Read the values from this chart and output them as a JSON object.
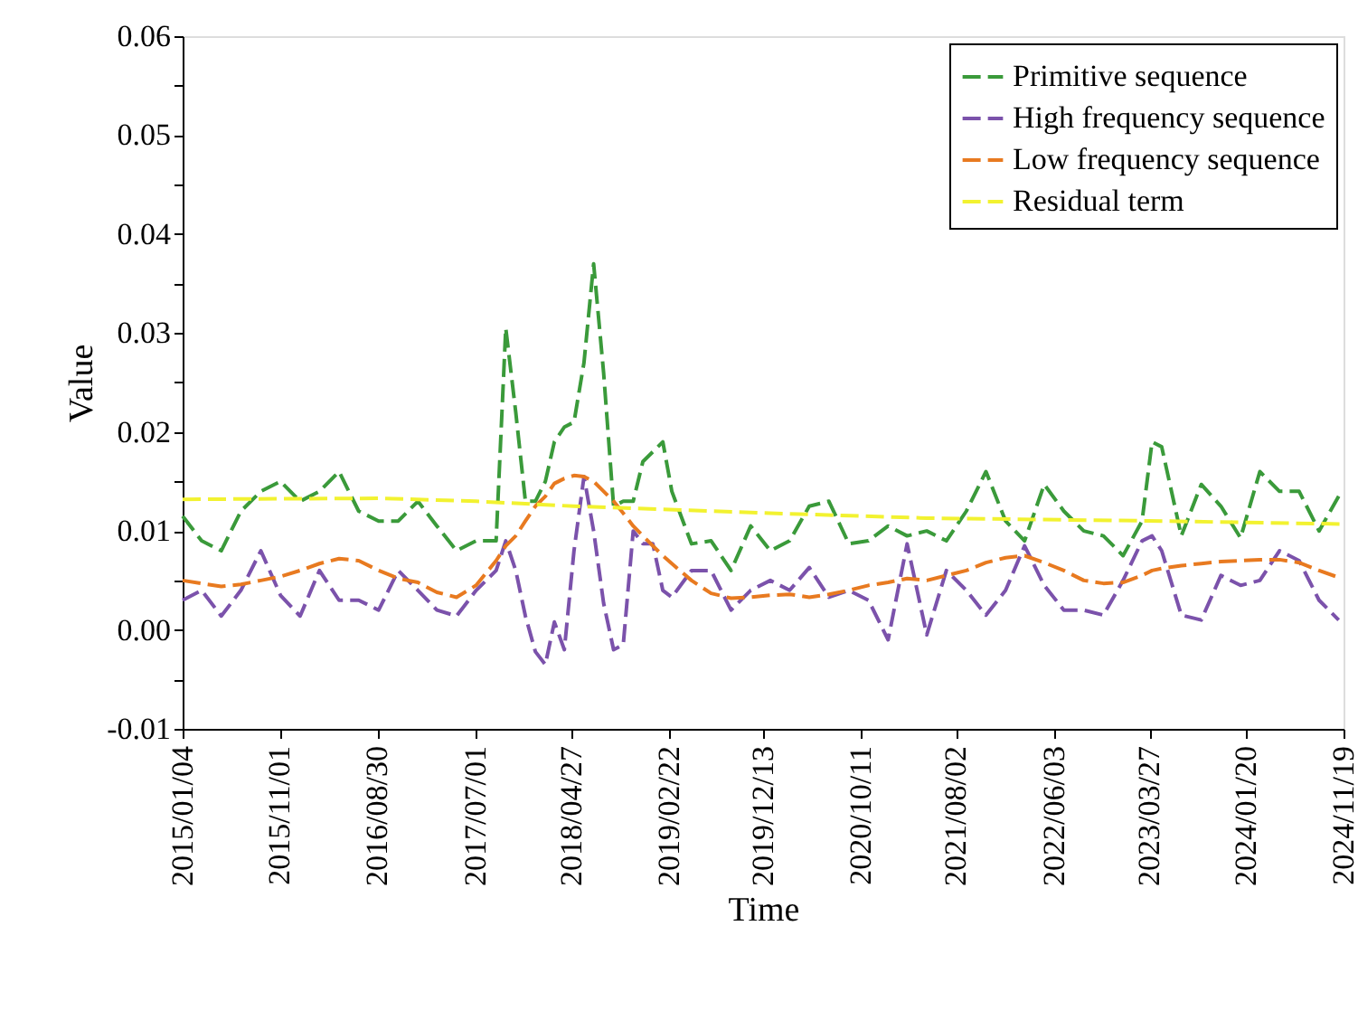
{
  "chart_data": {
    "type": "line",
    "xlabel": "Time",
    "ylabel": "Value",
    "x": [
      "2015-01-04",
      "2015-03-04",
      "2015-05-04",
      "2015-07-04",
      "2015-09-04",
      "2015-11-04",
      "2016-01-04",
      "2016-03-04",
      "2016-05-04",
      "2016-07-04",
      "2016-09-04",
      "2016-11-04",
      "2017-01-04",
      "2017-03-04",
      "2017-05-04",
      "2017-07-04",
      "2017-09-04",
      "2017-10-04",
      "2017-11-04",
      "2017-12-04",
      "2018-01-04",
      "2018-02-04",
      "2018-03-04",
      "2018-04-04",
      "2018-05-04",
      "2018-06-04",
      "2018-07-04",
      "2018-08-04",
      "2018-09-04",
      "2018-10-04",
      "2018-11-04",
      "2018-12-04",
      "2019-01-04",
      "2019-02-04",
      "2019-03-04",
      "2019-05-04",
      "2019-07-04",
      "2019-09-04",
      "2019-11-04",
      "2020-01-04",
      "2020-03-04",
      "2020-05-04",
      "2020-07-04",
      "2020-09-04",
      "2020-11-04",
      "2021-01-04",
      "2021-03-04",
      "2021-05-04",
      "2021-07-04",
      "2021-09-04",
      "2021-11-04",
      "2022-01-04",
      "2022-03-04",
      "2022-05-04",
      "2022-07-04",
      "2022-09-04",
      "2022-11-04",
      "2023-01-04",
      "2023-03-04",
      "2023-04-04",
      "2023-05-04",
      "2023-07-04",
      "2023-09-04",
      "2023-11-04",
      "2024-01-04",
      "2024-03-04",
      "2024-05-04",
      "2024-07-04",
      "2024-09-04",
      "2024-11-04"
    ],
    "series": [
      {
        "name": "Primitive sequence",
        "color": "#3a9a3a",
        "values": [
          0.0115,
          0.009,
          0.008,
          0.012,
          0.014,
          0.015,
          0.013,
          0.014,
          0.016,
          0.012,
          0.011,
          0.011,
          0.013,
          0.0105,
          0.008,
          0.009,
          0.009,
          0.0305,
          0.022,
          0.013,
          0.013,
          0.015,
          0.019,
          0.0205,
          0.021,
          0.027,
          0.037,
          0.026,
          0.0125,
          0.013,
          0.013,
          0.017,
          0.018,
          0.019,
          0.014,
          0.0087,
          0.009,
          0.006,
          0.0105,
          0.008,
          0.009,
          0.0125,
          0.013,
          0.0087,
          0.009,
          0.0105,
          0.0095,
          0.01,
          0.009,
          0.012,
          0.016,
          0.011,
          0.009,
          0.0147,
          0.012,
          0.01,
          0.0095,
          0.0075,
          0.011,
          0.019,
          0.0185,
          0.0095,
          0.0147,
          0.0125,
          0.0093,
          0.016,
          0.014,
          0.014,
          0.01,
          0.0135
        ]
      },
      {
        "name": "High frequency sequence",
        "color": "#7b52ab",
        "values": [
          0.003,
          0.004,
          0.0014,
          0.004,
          0.008,
          0.0035,
          0.0014,
          0.006,
          0.003,
          0.003,
          0.002,
          0.006,
          0.004,
          0.002,
          0.0014,
          0.004,
          0.006,
          0.009,
          0.006,
          0.0014,
          -0.0022,
          -0.0035,
          0.0008,
          -0.002,
          0.008,
          0.0155,
          0.01,
          0.0027,
          -0.002,
          -0.0015,
          0.01,
          0.0087,
          0.0087,
          0.004,
          0.0033,
          0.006,
          0.006,
          0.002,
          0.004,
          0.005,
          0.004,
          0.0063,
          0.0033,
          0.004,
          0.003,
          -0.001,
          0.0087,
          -0.0005,
          0.006,
          0.004,
          0.0015,
          0.004,
          0.0085,
          0.0045,
          0.002,
          0.002,
          0.0015,
          0.005,
          0.009,
          0.0095,
          0.008,
          0.0015,
          0.001,
          0.0055,
          0.0045,
          0.005,
          0.008,
          0.007,
          0.003,
          0.001
        ]
      },
      {
        "name": "Low frequency sequence",
        "color": "#e87a20",
        "values": [
          0.005,
          0.0047,
          0.0044,
          0.0046,
          0.005,
          0.0054,
          0.006,
          0.0067,
          0.0072,
          0.007,
          0.006,
          0.0052,
          0.0048,
          0.0038,
          0.0033,
          0.0045,
          0.007,
          0.0085,
          0.0095,
          0.011,
          0.0125,
          0.0135,
          0.0148,
          0.0153,
          0.0156,
          0.0155,
          0.015,
          0.014,
          0.013,
          0.0118,
          0.0105,
          0.0095,
          0.0085,
          0.0075,
          0.0067,
          0.005,
          0.0037,
          0.0032,
          0.0033,
          0.0035,
          0.0036,
          0.0033,
          0.0036,
          0.004,
          0.0045,
          0.0048,
          0.0052,
          0.005,
          0.0055,
          0.006,
          0.0068,
          0.0073,
          0.0075,
          0.0068,
          0.006,
          0.005,
          0.0047,
          0.0048,
          0.0055,
          0.006,
          0.0062,
          0.0065,
          0.0067,
          0.0069,
          0.007,
          0.0071,
          0.0071,
          0.0068,
          0.006,
          0.0053
        ]
      },
      {
        "name": "Residual term",
        "color": "#f2f230",
        "x": [
          "2015-01-04",
          "2016-09-04",
          "2017-07-04",
          "2018-05-04",
          "2020-01-04",
          "2021-05-04",
          "2023-05-04",
          "2024-11-19"
        ],
        "values": [
          0.0132,
          0.0133,
          0.013,
          0.0125,
          0.0118,
          0.0113,
          0.011,
          0.0107
        ]
      }
    ],
    "xlim": [
      "2015-01-04",
      "2024-11-19"
    ],
    "xticks": [
      {
        "value": "2015-01-04",
        "label": "2015/01/04"
      },
      {
        "value": "2015-11-01",
        "label": "2015/11/01"
      },
      {
        "value": "2016-08-30",
        "label": "2016/08/30"
      },
      {
        "value": "2017-07-01",
        "label": "2017/07/01"
      },
      {
        "value": "2018-04-27",
        "label": "2018/04/27"
      },
      {
        "value": "2019-02-22",
        "label": "2019/02/22"
      },
      {
        "value": "2019-12-13",
        "label": "2019/12/13"
      },
      {
        "value": "2020-10-11",
        "label": "2020/10/11"
      },
      {
        "value": "2021-08-02",
        "label": "2021/08/02"
      },
      {
        "value": "2022-06-03",
        "label": "2022/06/03"
      },
      {
        "value": "2023-03-27",
        "label": "2023/03/27"
      },
      {
        "value": "2024-01-20",
        "label": "2024/01/20"
      },
      {
        "value": "2024-11-19",
        "label": "2024/11/19"
      }
    ],
    "ylim": [
      -0.01,
      0.06
    ],
    "yticks": [
      {
        "value": -0.01,
        "label": "-0.01"
      },
      {
        "value": -0.005,
        "label": null
      },
      {
        "value": 0,
        "label": "0.00"
      },
      {
        "value": 0.005,
        "label": null
      },
      {
        "value": 0.01,
        "label": "0.01"
      },
      {
        "value": 0.015,
        "label": null
      },
      {
        "value": 0.02,
        "label": "0.02"
      },
      {
        "value": 0.025,
        "label": null
      },
      {
        "value": 0.03,
        "label": "0.03"
      },
      {
        "value": 0.035,
        "label": null
      },
      {
        "value": 0.04,
        "label": "0.04"
      },
      {
        "value": 0.045,
        "label": null
      },
      {
        "value": 0.05,
        "label": "0.05"
      },
      {
        "value": 0.055,
        "label": null
      },
      {
        "value": 0.06,
        "label": "0.06"
      }
    ],
    "grid": false,
    "legend": "top right",
    "line_style": "dashed"
  }
}
